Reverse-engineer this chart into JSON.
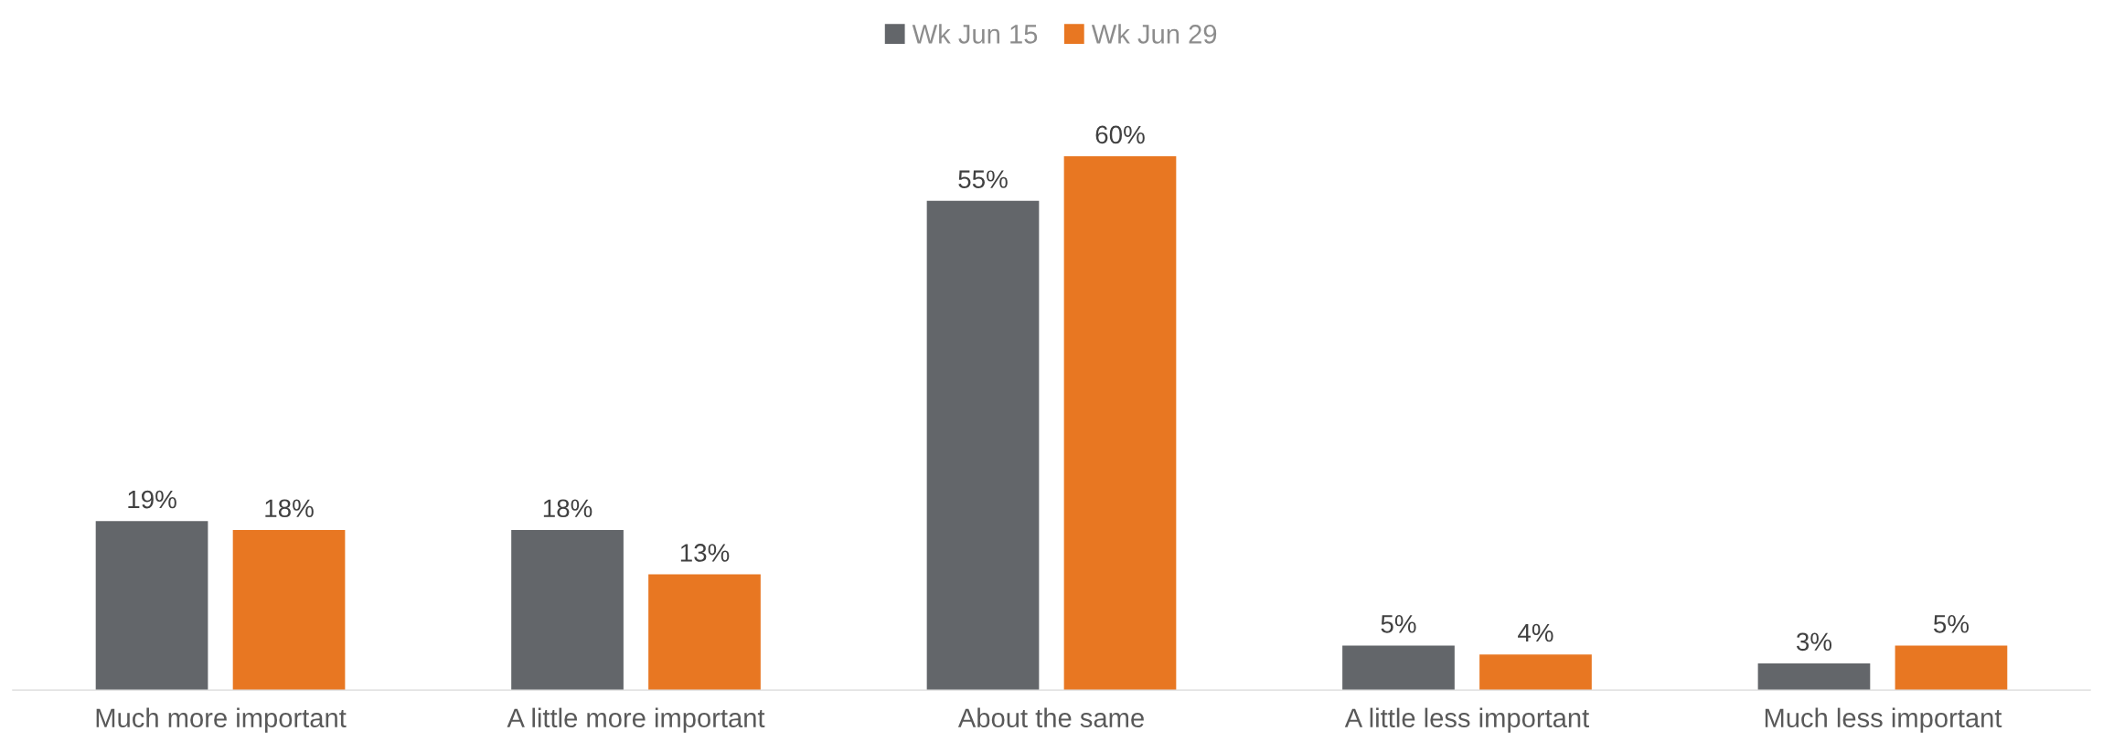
{
  "chart_data": {
    "type": "bar",
    "categories": [
      "Much more important",
      "A little more important",
      "About the same",
      "A little less important",
      "Much less important"
    ],
    "series": [
      {
        "name": "Wk Jun 15",
        "color": "#63666a",
        "values": [
          19,
          18,
          55,
          5,
          3
        ],
        "value_labels": [
          "19%",
          "18%",
          "55%",
          "5%",
          "3%"
        ]
      },
      {
        "name": "Wk Jun 29",
        "color": "#e87722",
        "values": [
          18,
          13,
          60,
          4,
          5
        ],
        "value_labels": [
          "18%",
          "13%",
          "60%",
          "4%",
          "5%"
        ]
      }
    ],
    "legend": "top",
    "grid": false
  }
}
